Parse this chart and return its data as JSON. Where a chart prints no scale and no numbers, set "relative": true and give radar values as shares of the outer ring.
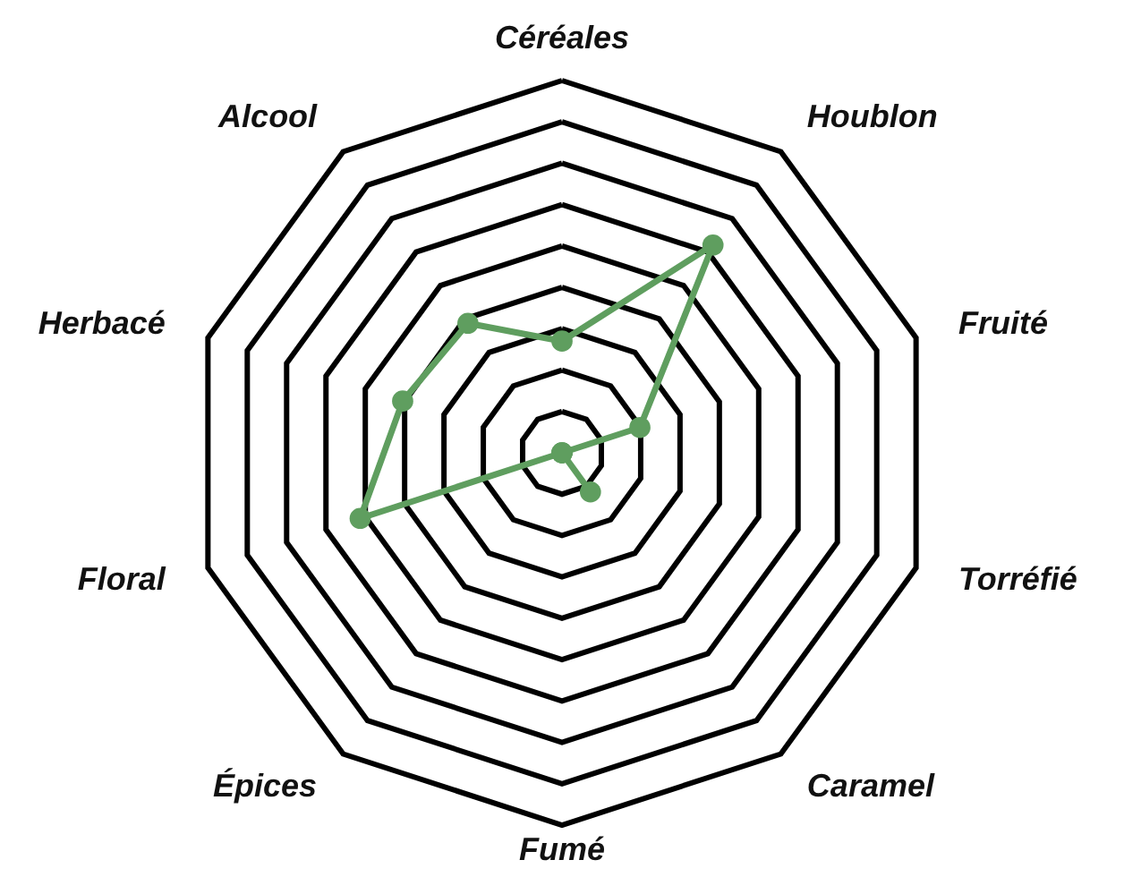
{
  "chart_data": {
    "type": "radar",
    "relative": true,
    "grid": true,
    "marker": "circle",
    "categories": [
      "Céréales",
      "Houblon",
      "Fruité",
      "Torréfié",
      "Caramel",
      "Fumé",
      "Épices",
      "Floral",
      "Herbacé",
      "Alcool"
    ],
    "series": [
      {
        "color": "#5f9e5f",
        "values": [
          0.3,
          0.69,
          0.22,
          0,
          0.13,
          0,
          0,
          0.57,
          0.45,
          0.43
        ]
      }
    ]
  }
}
